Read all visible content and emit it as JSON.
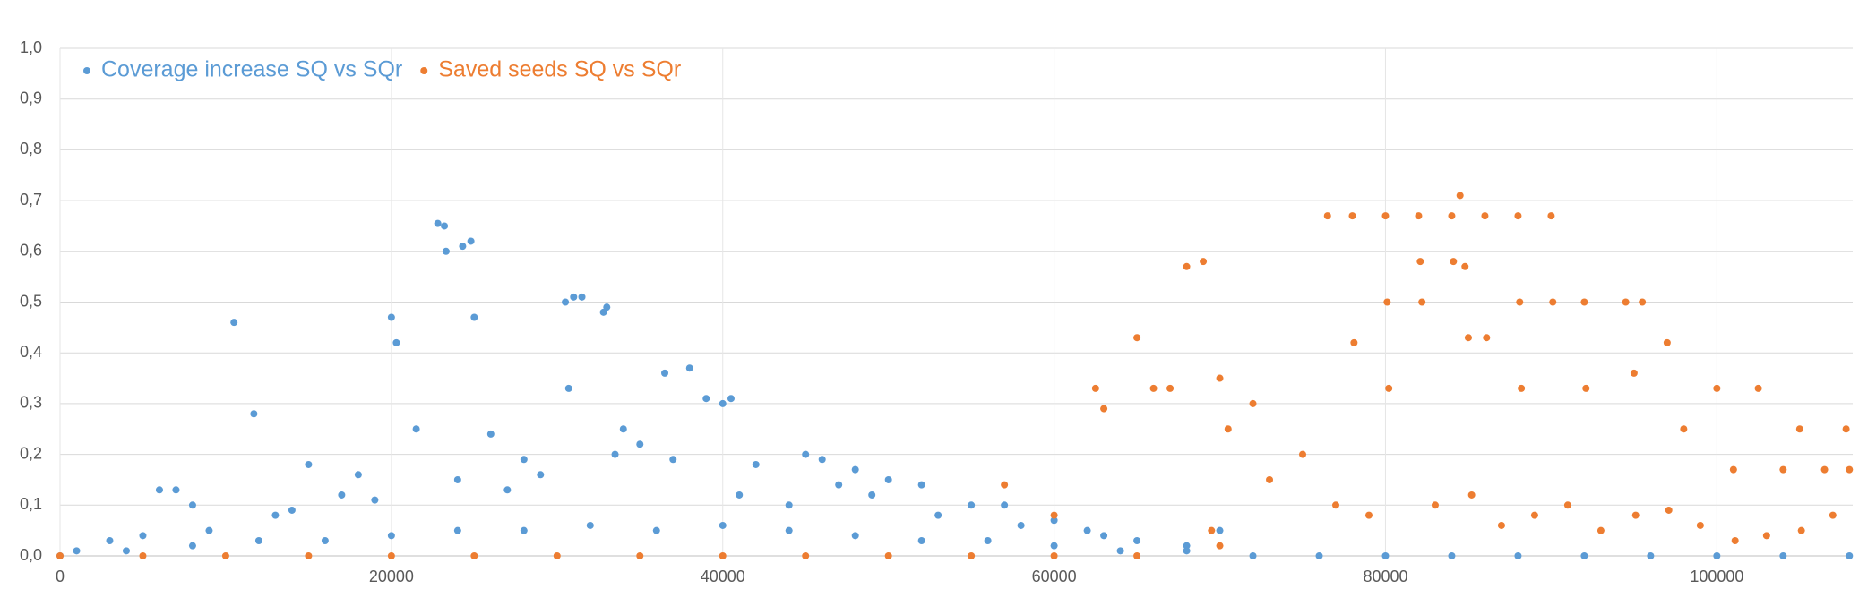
{
  "chart_data": {
    "type": "scatter",
    "xlim": [
      0,
      108200
    ],
    "ylim": [
      0,
      1
    ],
    "xticks": [
      0,
      20000,
      40000,
      60000,
      80000,
      100000
    ],
    "yticks": [
      {
        "value": 0,
        "label": "0,0"
      },
      {
        "value": 0.1,
        "label": "0,1"
      },
      {
        "value": 0.2,
        "label": "0,2"
      },
      {
        "value": 0.3,
        "label": "0,3"
      },
      {
        "value": 0.4,
        "label": "0,4"
      },
      {
        "value": 0.5,
        "label": "0,5"
      },
      {
        "value": 0.6,
        "label": "0,6"
      },
      {
        "value": 0.7,
        "label": "0,7"
      },
      {
        "value": 0.8,
        "label": "0,8"
      },
      {
        "value": 0.9,
        "label": "0,9"
      },
      {
        "value": 1,
        "label": "1,0"
      }
    ],
    "grid": true,
    "legend": "top-left",
    "series": [
      {
        "name": "Coverage increase SQ vs SQr",
        "color": "#5b9bd5",
        "x": [
          1000,
          3000,
          5000,
          6000,
          7000,
          8000,
          10500,
          11700,
          13000,
          15000,
          17000,
          18000,
          20000,
          20300,
          21500,
          22800,
          23200,
          23300,
          24300,
          24800,
          25000,
          26000,
          28000,
          30500,
          30700,
          31000,
          31500,
          32800,
          33000,
          34000,
          35000,
          36500,
          38000,
          39000,
          40000,
          40500,
          42000,
          45000,
          46000,
          48000,
          50000,
          52000,
          55000,
          57000,
          60000,
          63000,
          65000,
          68000,
          70000,
          9000,
          14000,
          19000,
          24000,
          27000,
          29000,
          33500,
          37000,
          41000,
          44000,
          47000,
          49000,
          53000,
          58000,
          62000,
          0,
          4000,
          8000,
          12000,
          16000,
          20000,
          24000,
          28000,
          32000,
          36000,
          40000,
          44000,
          48000,
          52000,
          56000,
          60000,
          64000,
          68000,
          72000,
          76000,
          80000,
          84000,
          88000,
          92000,
          96000,
          100000,
          104000,
          108000
        ],
        "values": [
          0.01,
          0.03,
          0.04,
          0.13,
          0.13,
          0.1,
          0.46,
          0.28,
          0.08,
          0.18,
          0.12,
          0.16,
          0.47,
          0.42,
          0.25,
          0.655,
          0.65,
          0.6,
          0.61,
          0.62,
          0.47,
          0.24,
          0.19,
          0.5,
          0.33,
          0.51,
          0.51,
          0.48,
          0.49,
          0.25,
          0.22,
          0.36,
          0.37,
          0.31,
          0.3,
          0.31,
          0.18,
          0.2,
          0.19,
          0.17,
          0.15,
          0.14,
          0.1,
          0.1,
          0.07,
          0.04,
          0.03,
          0.02,
          0.05,
          0.05,
          0.09,
          0.11,
          0.15,
          0.13,
          0.16,
          0.2,
          0.19,
          0.12,
          0.1,
          0.14,
          0.12,
          0.08,
          0.06,
          0.05,
          0,
          0.01,
          0.02,
          0.03,
          0.03,
          0.04,
          0.05,
          0.05,
          0.06,
          0.05,
          0.06,
          0.05,
          0.04,
          0.03,
          0.03,
          0.02,
          0.01,
          0.01,
          0,
          0,
          0,
          0,
          0,
          0,
          0,
          0,
          0,
          0
        ]
      },
      {
        "name": "Saved seeds SQ vs SQr",
        "color": "#ed7d31",
        "x": [
          57000,
          60000,
          62500,
          63000,
          65000,
          66000,
          67000,
          68000,
          69000,
          70000,
          72000,
          75000,
          76500,
          78000,
          80000,
          82000,
          84000,
          84500,
          86000,
          88000,
          90000,
          82100,
          84100,
          84800,
          80100,
          82200,
          85000,
          86100,
          88100,
          90100,
          92000,
          94500,
          95500,
          97000,
          95000,
          100000,
          102500,
          105000,
          107800,
          78100,
          80200,
          88200,
          92100,
          98000,
          101000,
          104000,
          106500,
          108000,
          77000,
          79000,
          83000,
          85200,
          87000,
          89000,
          91000,
          93000,
          95100,
          97100,
          99000,
          101100,
          103000,
          105100,
          107000,
          69500,
          70500,
          73000,
          0,
          5000,
          10000,
          15000,
          20000,
          25000,
          30000,
          35000,
          40000,
          45000,
          50000,
          55000,
          60000,
          65000,
          70000
        ],
        "values": [
          0.14,
          0.08,
          0.33,
          0.29,
          0.43,
          0.33,
          0.33,
          0.57,
          0.58,
          0.35,
          0.3,
          0.2,
          0.67,
          0.67,
          0.67,
          0.67,
          0.67,
          0.71,
          0.67,
          0.67,
          0.67,
          0.58,
          0.58,
          0.57,
          0.5,
          0.5,
          0.43,
          0.43,
          0.5,
          0.5,
          0.5,
          0.5,
          0.5,
          0.42,
          0.36,
          0.33,
          0.33,
          0.25,
          0.25,
          0.42,
          0.33,
          0.33,
          0.33,
          0.25,
          0.17,
          0.17,
          0.17,
          0.17,
          0.1,
          0.08,
          0.1,
          0.12,
          0.06,
          0.08,
          0.1,
          0.05,
          0.08,
          0.09,
          0.06,
          0.03,
          0.04,
          0.05,
          0.08,
          0.05,
          0.25,
          0.15,
          0,
          0,
          0,
          0,
          0,
          0,
          0,
          0,
          0,
          0,
          0,
          0,
          0,
          0,
          0.02
        ]
      }
    ]
  }
}
